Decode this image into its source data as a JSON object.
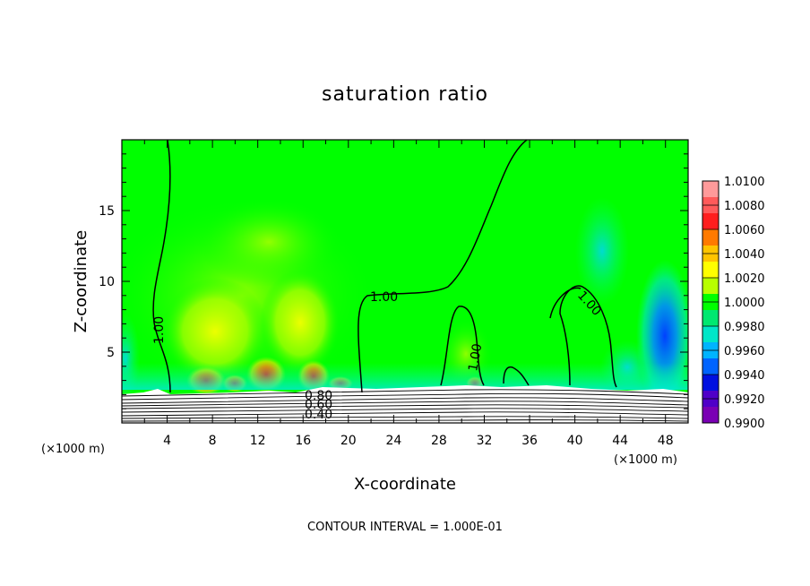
{
  "chart_data": {
    "type": "heatmap",
    "title": "saturation ratio",
    "xlabel": "X-coordinate",
    "ylabel": "Z-coordinate",
    "x_unit": "(×1000 m)",
    "z_unit": "(×1000 m)",
    "xlim": [
      0,
      50
    ],
    "ylim": [
      0,
      20
    ],
    "x_ticks": [
      "4",
      "8",
      "12",
      "16",
      "20",
      "24",
      "28",
      "32",
      "36",
      "40",
      "44",
      "48"
    ],
    "y_ticks": [
      "5",
      "10",
      "15"
    ],
    "colorbar": {
      "labels": [
        "1.0100",
        "1.0080",
        "1.0060",
        "1.0040",
        "1.0020",
        "1.0000",
        "0.9980",
        "0.9960",
        "0.9940",
        "0.9920",
        "0.9900"
      ],
      "colors": [
        "#ff9a9a",
        "#ff5a5a",
        "#ff1e1e",
        "#ff7a00",
        "#ffc400",
        "#ffff00",
        "#b8ff00",
        "#00ff00",
        "#00e870",
        "#00e6c8",
        "#00b4ff",
        "#0064ff",
        "#0010e0",
        "#5000c8",
        "#7a00b4"
      ]
    },
    "contour_labels": [
      "1.00",
      "1.00",
      "1.00",
      "1.00",
      "0.80",
      "0.60",
      "0.40"
    ],
    "contour_interval": "CONTOUR INTERVAL = 1.000E-01",
    "grid": false
  }
}
